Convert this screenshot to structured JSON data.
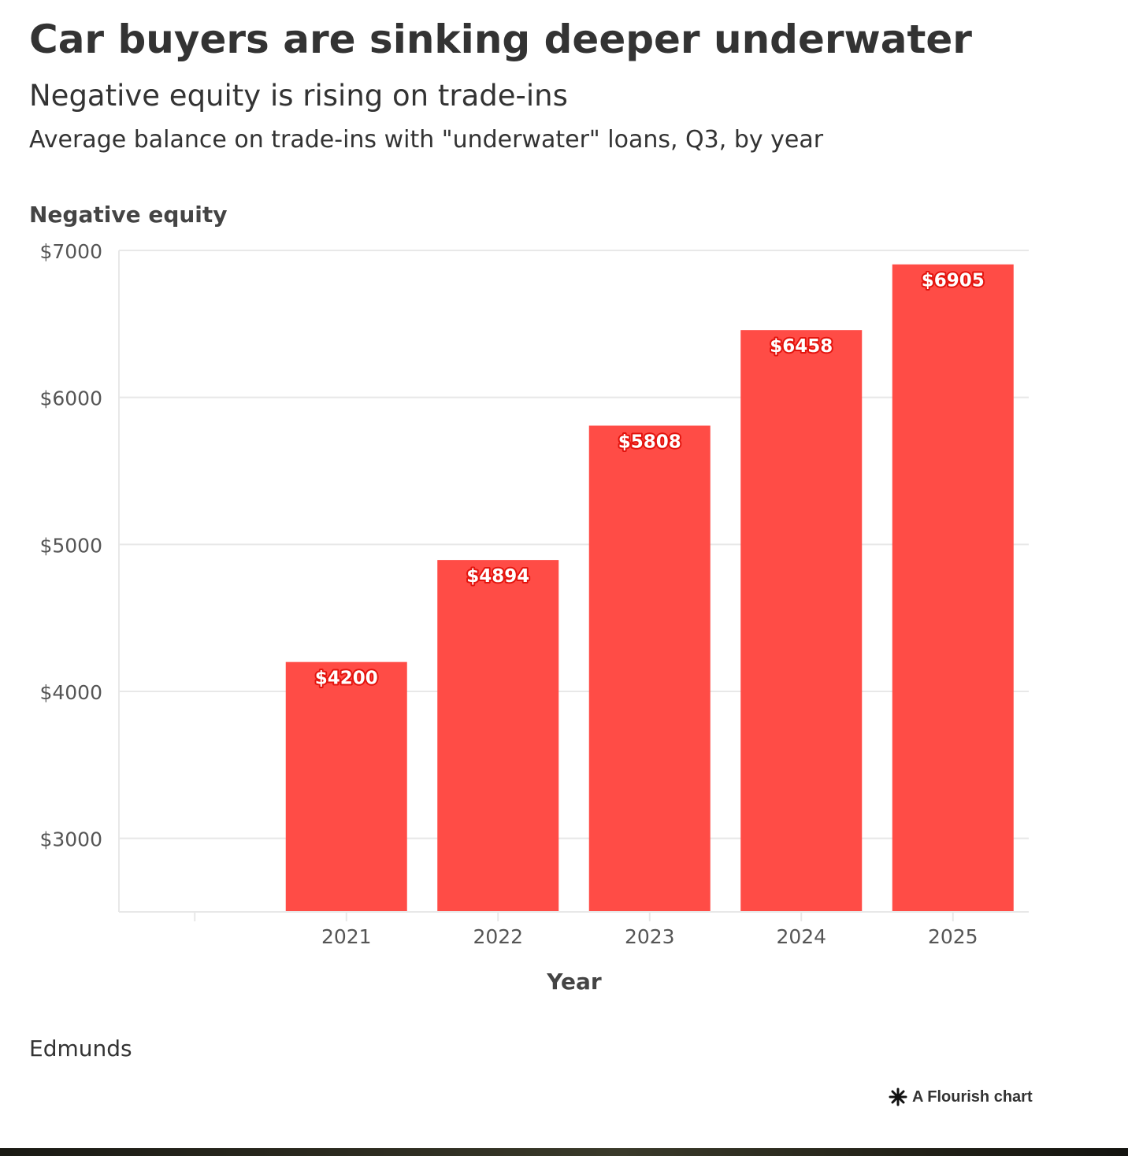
{
  "header": {
    "title": "Car buyers are sinking deeper underwater",
    "subtitle": "Negative equity is rising on trade-ins",
    "description": "Average balance on trade-ins with \"underwater\" loans, Q3, by year"
  },
  "footer": {
    "source": "Edmunds",
    "credit": "A Flourish chart",
    "credit_icon": "asterisk-icon"
  },
  "colors": {
    "bar": "#ff4c46",
    "label_stroke": "#e3140e",
    "text": "#333333",
    "axis_text": "#555555",
    "grid": "#e8e8e8"
  },
  "chart_data": {
    "type": "bar",
    "categories": [
      "",
      "2021",
      "2022",
      "2023",
      "2024",
      "2025"
    ],
    "values": [
      null,
      4200,
      4894,
      5808,
      6458,
      6905
    ],
    "value_labels": [
      "",
      "$4200",
      "$4894",
      "$5808",
      "$6458",
      "$6905"
    ],
    "title": "Car buyers are sinking deeper underwater",
    "subtitle": "Negative equity is rising on trade-ins",
    "xlabel": "Year",
    "ylabel": "Negative equity",
    "ylim": [
      2500,
      7000
    ],
    "yticks": [
      3000,
      4000,
      5000,
      6000,
      7000
    ],
    "ytick_labels": [
      "$3000",
      "$4000",
      "$5000",
      "$6000",
      "$7000"
    ],
    "grid": true,
    "legend": "none"
  }
}
